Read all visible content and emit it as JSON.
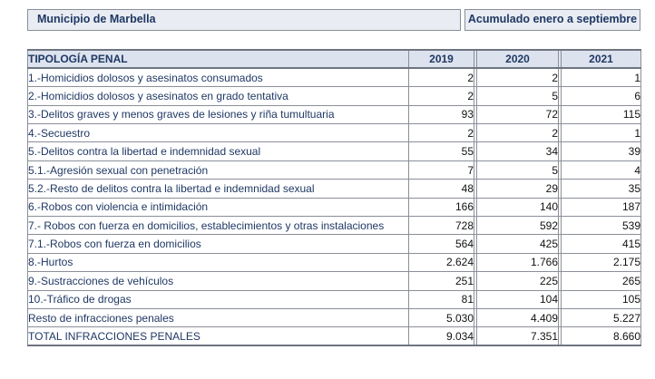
{
  "header": {
    "municipality": "Municipio de Marbella",
    "period": "Acumulado enero a septiembre"
  },
  "table": {
    "columns": [
      "TIPOLOGÍA PENAL",
      "2019",
      "2020",
      "2021"
    ],
    "rows": [
      {
        "label": "1.-Homicidios dolosos y asesinatos consumados",
        "v2019": "2",
        "v2020": "2",
        "v2021": "1"
      },
      {
        "label": "2.-Homicidios dolosos y asesinatos en grado tentativa",
        "v2019": "2",
        "v2020": "5",
        "v2021": "6"
      },
      {
        "label": "3.-Delitos graves y menos graves de lesiones y riña tumultuaria",
        "v2019": "93",
        "v2020": "72",
        "v2021": "115"
      },
      {
        "label": "4.-Secuestro",
        "v2019": "2",
        "v2020": "2",
        "v2021": "1"
      },
      {
        "label": "5.-Delitos contra la libertad e indemnidad sexual",
        "v2019": "55",
        "v2020": "34",
        "v2021": "39"
      },
      {
        "label": "5.1.-Agresión sexual con penetración",
        "v2019": "7",
        "v2020": "5",
        "v2021": "4"
      },
      {
        "label": "5.2.-Resto de delitos contra la libertad e indemnidad sexual",
        "v2019": "48",
        "v2020": "29",
        "v2021": "35"
      },
      {
        "label": "6.-Robos con violencia e intimidación",
        "v2019": "166",
        "v2020": "140",
        "v2021": "187"
      },
      {
        "label": "7.- Robos con fuerza en domicilios, establecimientos y otras instalaciones",
        "v2019": "728",
        "v2020": "592",
        "v2021": "539"
      },
      {
        "label": "7.1.-Robos con fuerza en domicilios",
        "v2019": "564",
        "v2020": "425",
        "v2021": "415"
      },
      {
        "label": "8.-Hurtos",
        "v2019": "2.624",
        "v2020": "1.766",
        "v2021": "2.175"
      },
      {
        "label": "9.-Sustracciones de vehículos",
        "v2019": "251",
        "v2020": "225",
        "v2021": "265"
      },
      {
        "label": "10.-Tráfico de drogas",
        "v2019": "81",
        "v2020": "104",
        "v2021": "105"
      },
      {
        "label": "Resto de infracciones penales",
        "v2019": "5.030",
        "v2020": "4.409",
        "v2021": "5.227"
      },
      {
        "label": "TOTAL INFRACCIONES PENALES",
        "v2019": "9.034",
        "v2020": "7.351",
        "v2021": "8.660"
      }
    ]
  }
}
